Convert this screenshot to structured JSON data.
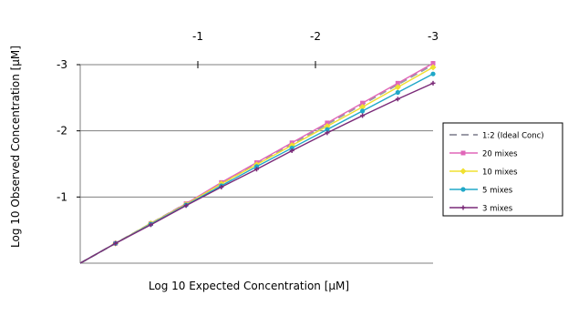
{
  "chart_data": {
    "type": "line",
    "title": "",
    "xlabel": "Log 10 Expected Concentration [µM]",
    "ylabel": "Log 10 Observed Concentration [µM]",
    "xlim": [
      0,
      3
    ],
    "ylim": [
      0,
      3
    ],
    "x_ticks": [
      {
        "value": 1,
        "label": "-1"
      },
      {
        "value": 2,
        "label": "-2"
      },
      {
        "value": 3,
        "label": "-3"
      }
    ],
    "y_ticks": [
      {
        "value": 1,
        "label": "-1"
      },
      {
        "value": 2,
        "label": "-2"
      },
      {
        "value": 3,
        "label": "-3"
      }
    ],
    "grid": "horizontal",
    "x_axis_position": "top",
    "legend_position": "right",
    "series": [
      {
        "name": "1:2 (Ideal Conc)",
        "color": "#9a9aa6",
        "dash": true,
        "marker": "none",
        "x": [
          0,
          3
        ],
        "y": [
          0,
          3
        ]
      },
      {
        "name": "20 mixes",
        "color": "#e066b8",
        "marker": "square",
        "x": [
          0,
          0.3,
          0.6,
          0.9,
          1.2,
          1.5,
          1.8,
          2.1,
          2.4,
          2.7,
          3.0
        ],
        "y": [
          0,
          0.3,
          0.6,
          0.9,
          1.22,
          1.52,
          1.82,
          2.12,
          2.42,
          2.72,
          3.02
        ]
      },
      {
        "name": "10 mixes",
        "color": "#f0e030",
        "marker": "diamond",
        "x": [
          0,
          0.3,
          0.6,
          0.9,
          1.2,
          1.5,
          1.8,
          2.1,
          2.4,
          2.7,
          3.0
        ],
        "y": [
          0,
          0.3,
          0.6,
          0.89,
          1.2,
          1.49,
          1.78,
          2.07,
          2.36,
          2.66,
          2.96
        ]
      },
      {
        "name": "5 mixes",
        "color": "#20a8c8",
        "marker": "circle",
        "x": [
          0,
          0.3,
          0.6,
          0.9,
          1.2,
          1.5,
          1.8,
          2.1,
          2.4,
          2.7,
          3.0
        ],
        "y": [
          0,
          0.3,
          0.59,
          0.88,
          1.17,
          1.46,
          1.74,
          2.02,
          2.3,
          2.58,
          2.86
        ]
      },
      {
        "name": "3 mixes",
        "color": "#7a2a78",
        "marker": "cross",
        "x": [
          0,
          0.3,
          0.6,
          0.9,
          1.2,
          1.5,
          1.8,
          2.1,
          2.4,
          2.7,
          3.0
        ],
        "y": [
          0,
          0.3,
          0.58,
          0.87,
          1.15,
          1.42,
          1.7,
          1.97,
          2.23,
          2.48,
          2.72
        ]
      }
    ]
  }
}
